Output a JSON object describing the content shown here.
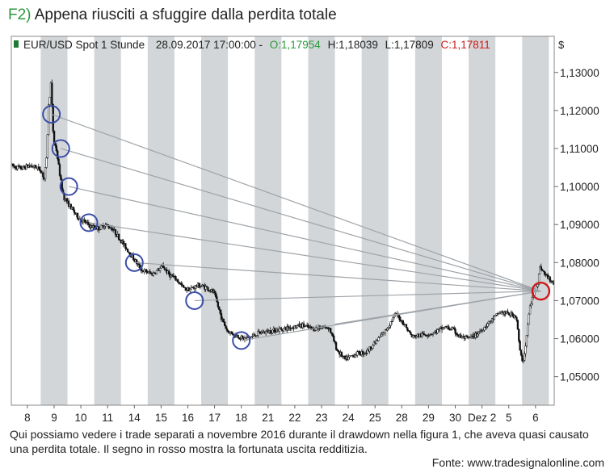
{
  "figure": {
    "label": "F2)",
    "title": "Appena riusciti a sfuggire dalla perdita totale",
    "caption": "Qui possiamo vedere i trade separati a novembre 2016 durante il drawdown nella figura 1, che aveva quasi causato una perdita totale. Il segno in rosso mostra la fortunata uscita redditizia.",
    "source": "Fonte: www.tradesignalonline.com"
  },
  "chart_data": {
    "type": "candlestick",
    "header": {
      "symbol": "EUR/USD Spot 1 Stunde",
      "datetime": "28.09.2017 17:00:00 -",
      "open": "O:1,17954",
      "high": "H:1,18039",
      "low": "L:1,17809",
      "close": "C:1,17811"
    },
    "y_unit": "$",
    "ylim": [
      1.0425,
      1.1395
    ],
    "y_ticks": [
      {
        "value": 1.13,
        "label": "1,13000"
      },
      {
        "value": 1.12,
        "label": "1,12000"
      },
      {
        "value": 1.11,
        "label": "1,11000"
      },
      {
        "value": 1.1,
        "label": "1,10000"
      },
      {
        "value": 1.09,
        "label": "1,09000"
      },
      {
        "value": 1.08,
        "label": "1,08000"
      },
      {
        "value": 1.07,
        "label": "1,07000"
      },
      {
        "value": 1.06,
        "label": "1,06000"
      },
      {
        "value": 1.05,
        "label": "1,05000"
      }
    ],
    "x_ticks": [
      "8",
      "9",
      "10",
      "11",
      "14",
      "15",
      "16",
      "17",
      "18",
      "21",
      "22",
      "23",
      "24",
      "25",
      "28",
      "29",
      "30",
      "Dez 2",
      "5",
      "6"
    ],
    "x_tick_pos": [
      0.5,
      1.5,
      2.5,
      3.5,
      4.5,
      5.5,
      6.5,
      7.5,
      8.5,
      9.5,
      10.5,
      11.5,
      12.5,
      13.5,
      14.5,
      15.5,
      16.5,
      17.5,
      18.5,
      19.5
    ],
    "xlim": [
      -0.1,
      20.2
    ],
    "shaded_days": [
      1,
      3,
      5,
      7,
      9,
      11,
      13,
      15,
      17,
      19
    ],
    "price_path": [
      [
        -0.1,
        1.1055
      ],
      [
        0.3,
        1.1048
      ],
      [
        0.6,
        1.1055
      ],
      [
        0.9,
        1.105
      ],
      [
        1.05,
        1.104
      ],
      [
        1.15,
        1.102
      ],
      [
        1.25,
        1.108
      ],
      [
        1.3,
        1.12
      ],
      [
        1.4,
        1.127
      ],
      [
        1.45,
        1.12
      ],
      [
        1.5,
        1.112
      ],
      [
        1.6,
        1.11
      ],
      [
        1.7,
        1.105
      ],
      [
        1.8,
        1.1
      ],
      [
        1.9,
        1.097
      ],
      [
        2.1,
        1.095
      ],
      [
        2.4,
        1.092
      ],
      [
        2.6,
        1.091
      ],
      [
        2.9,
        1.0895
      ],
      [
        3.2,
        1.089
      ],
      [
        3.4,
        1.09
      ],
      [
        3.7,
        1.089
      ],
      [
        4.0,
        1.086
      ],
      [
        4.3,
        1.083
      ],
      [
        4.5,
        1.081
      ],
      [
        4.8,
        1.078
      ],
      [
        5.2,
        1.077
      ],
      [
        5.6,
        1.079
      ],
      [
        5.8,
        1.077
      ],
      [
        6.1,
        1.0755
      ],
      [
        6.4,
        1.073
      ],
      [
        6.6,
        1.073
      ],
      [
        6.9,
        1.074
      ],
      [
        7.2,
        1.0735
      ],
      [
        7.5,
        1.072
      ],
      [
        7.8,
        1.065
      ],
      [
        8.0,
        1.062
      ],
      [
        8.3,
        1.061
      ],
      [
        8.6,
        1.06
      ],
      [
        8.9,
        1.0605
      ],
      [
        9.2,
        1.0615
      ],
      [
        9.6,
        1.062
      ],
      [
        10.0,
        1.0625
      ],
      [
        10.4,
        1.063
      ],
      [
        10.8,
        1.0635
      ],
      [
        11.2,
        1.0625
      ],
      [
        11.5,
        1.063
      ],
      [
        11.8,
        1.063
      ],
      [
        12.1,
        1.057
      ],
      [
        12.4,
        1.0545
      ],
      [
        12.8,
        1.056
      ],
      [
        13.2,
        1.0565
      ],
      [
        13.6,
        1.0595
      ],
      [
        13.9,
        1.062
      ],
      [
        14.3,
        1.0665
      ],
      [
        14.6,
        1.064
      ],
      [
        14.9,
        1.0605
      ],
      [
        15.3,
        1.061
      ],
      [
        15.7,
        1.0615
      ],
      [
        16.1,
        1.063
      ],
      [
        16.4,
        1.0625
      ],
      [
        16.7,
        1.0605
      ],
      [
        17.0,
        1.06
      ],
      [
        17.3,
        1.061
      ],
      [
        17.6,
        1.063
      ],
      [
        17.9,
        1.065
      ],
      [
        18.2,
        1.067
      ],
      [
        18.5,
        1.0665
      ],
      [
        18.8,
        1.066
      ],
      [
        18.95,
        1.056
      ],
      [
        19.05,
        1.054
      ],
      [
        19.15,
        1.058
      ],
      [
        19.3,
        1.068
      ],
      [
        19.5,
        1.073
      ],
      [
        19.6,
        1.0745
      ],
      [
        19.7,
        1.079
      ],
      [
        19.85,
        1.077
      ],
      [
        20.0,
        1.076
      ],
      [
        20.2,
        1.0745
      ]
    ],
    "entries": [
      {
        "x": 1.4,
        "y": 1.119
      },
      {
        "x": 1.75,
        "y": 1.11
      },
      {
        "x": 2.05,
        "y": 1.1
      },
      {
        "x": 2.8,
        "y": 1.0905
      },
      {
        "x": 4.5,
        "y": 1.08
      },
      {
        "x": 6.75,
        "y": 1.07
      },
      {
        "x": 8.5,
        "y": 1.0595
      }
    ],
    "extra_lines": [
      {
        "x": 12.0,
        "y": 1.0638
      }
    ],
    "exit": {
      "x": 19.7,
      "y": 1.0725
    }
  }
}
